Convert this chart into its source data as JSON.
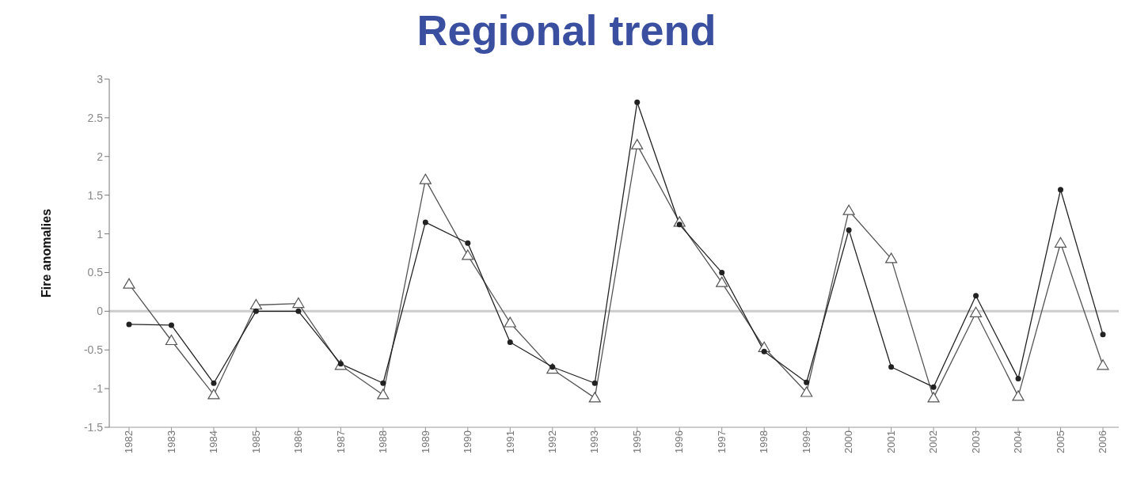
{
  "chart_data": {
    "type": "line",
    "title": "Regional trend",
    "ylabel": "Fire anomalies",
    "categories": [
      "1982",
      "1983",
      "1984",
      "1985",
      "1986",
      "1987",
      "1988",
      "1989",
      "1990",
      "1991",
      "1992",
      "1993",
      "1995",
      "1996",
      "1997",
      "1998",
      "1999",
      "2000",
      "2001",
      "2002",
      "2003",
      "2004",
      "2005",
      "2006"
    ],
    "series": [
      {
        "color": "#555555",
        "marker": "triangle",
        "values": [
          0.35,
          -0.38,
          -1.08,
          0.08,
          0.1,
          -0.7,
          -1.08,
          1.7,
          0.72,
          -0.15,
          -0.75,
          -1.12,
          2.15,
          1.15,
          0.37,
          -0.47,
          -1.05,
          1.3,
          0.68,
          -1.12,
          -0.02,
          -1.1,
          0.88,
          -0.7
        ]
      },
      {
        "color": "#222222",
        "marker": "circle",
        "values": [
          -0.17,
          -0.18,
          -0.93,
          0.0,
          0.0,
          -0.68,
          -0.93,
          1.15,
          0.88,
          -0.4,
          -0.72,
          -0.93,
          2.7,
          1.12,
          0.5,
          -0.52,
          -0.92,
          1.05,
          -0.72,
          -0.98,
          0.2,
          -0.87,
          1.57,
          -0.3
        ]
      }
    ],
    "ylim": [
      -1.5,
      3
    ],
    "yticks": [
      -1.5,
      -1,
      -0.5,
      0,
      0.5,
      1,
      1.5,
      2,
      2.5,
      3
    ],
    "ref_lines": [
      {
        "axis": "y",
        "value": 0,
        "color": "#cccccc"
      }
    ],
    "grid": false,
    "line_style": "solid"
  }
}
